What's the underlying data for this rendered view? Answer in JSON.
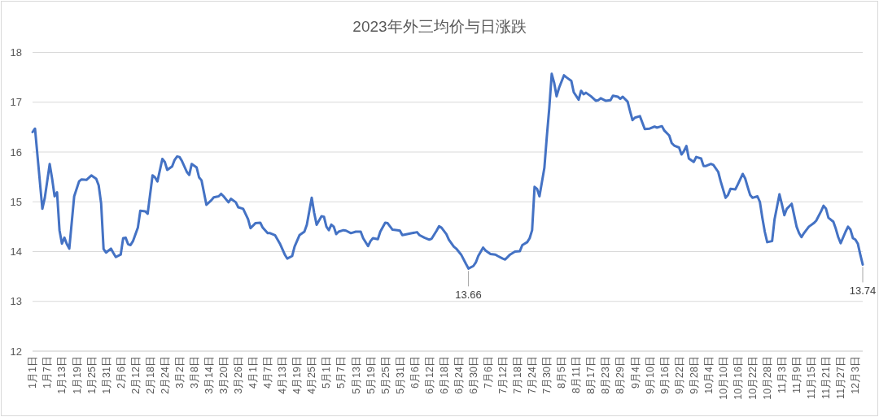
{
  "chart_data": {
    "type": "line",
    "title": "2023年外三均价与日涨跌",
    "x": [
      "--01-01",
      "--01-02",
      "--01-05",
      "--01-06",
      "--01-08",
      "--01-09",
      "--01-10",
      "--01-11",
      "--01-12",
      "--01-13",
      "--01-14",
      "--01-15",
      "--01-16",
      "--01-18",
      "--01-20",
      "--01-21",
      "--01-23",
      "--01-25",
      "--01-27",
      "--01-28",
      "--01-29",
      "--01-30",
      "--01-31",
      "--02-02",
      "--02-03",
      "--02-04",
      "--02-06",
      "--02-07",
      "--02-08",
      "--02-09",
      "--02-10",
      "--02-11",
      "--02-13",
      "--02-14",
      "--02-16",
      "--02-17",
      "--02-19",
      "--02-20",
      "--02-21",
      "--02-23",
      "--02-24",
      "--02-25",
      "--02-27",
      "--02-28",
      "--03-01",
      "--03-02",
      "--03-03",
      "--03-05",
      "--03-06",
      "--03-07",
      "--03-09",
      "--03-10",
      "--03-11",
      "--03-13",
      "--03-15",
      "--03-16",
      "--03-18",
      "--03-19",
      "--03-20",
      "--03-22",
      "--03-23",
      "--03-25",
      "--03-26",
      "--03-28",
      "--03-30",
      "--03-31",
      "--04-02",
      "--04-04",
      "--04-05",
      "--04-07",
      "--04-08",
      "--04-10",
      "--04-12",
      "--04-14",
      "--04-15",
      "--04-17",
      "--04-18",
      "--04-20",
      "--04-22",
      "--04-23",
      "--04-25",
      "--04-26",
      "--04-27",
      "--04-29",
      "--04-30",
      "--05-01",
      "--05-02",
      "--05-03",
      "--05-04",
      "--05-05",
      "--05-06",
      "--05-08",
      "--05-09",
      "--05-11",
      "--05-13",
      "--05-15",
      "--05-16",
      "--05-18",
      "--05-19",
      "--05-20",
      "--05-22",
      "--05-23",
      "--05-25",
      "--05-26",
      "--05-28",
      "--05-30",
      "--05-31",
      "--06-01",
      "--06-03",
      "--06-05",
      "--06-07",
      "--06-08",
      "--06-10",
      "--06-12",
      "--06-13",
      "--06-15",
      "--06-16",
      "--06-17",
      "--06-19",
      "--06-20",
      "--06-22",
      "--06-23",
      "--06-25",
      "--06-27",
      "--06-28",
      "--06-30",
      "--07-01",
      "--07-02",
      "--07-04",
      "--07-05",
      "--07-07",
      "--07-09",
      "--07-10",
      "--07-12",
      "--07-13",
      "--07-15",
      "--07-17",
      "--07-19",
      "--07-20",
      "--07-22",
      "--07-23",
      "--07-24",
      "--07-25",
      "--07-26",
      "--07-27",
      "--07-29",
      "--07-30",
      "--07-31",
      "--08-01",
      "--08-02",
      "--08-03",
      "--08-04",
      "--08-06",
      "--08-07",
      "--08-09",
      "--08-10",
      "--08-12",
      "--08-13",
      "--08-14",
      "--08-15",
      "--08-17",
      "--08-19",
      "--08-20",
      "--08-21",
      "--08-23",
      "--08-25",
      "--08-26",
      "--08-28",
      "--08-29",
      "--08-30",
      "--09-01",
      "--09-02",
      "--09-03",
      "--09-04",
      "--09-06",
      "--09-08",
      "--09-10",
      "--09-12",
      "--09-13",
      "--09-15",
      "--09-16",
      "--09-18",
      "--09-19",
      "--09-20",
      "--09-22",
      "--09-23",
      "--09-24",
      "--09-25",
      "--09-26",
      "--09-28",
      "--09-29",
      "--10-01",
      "--10-02",
      "--10-03",
      "--10-05",
      "--10-06",
      "--10-08",
      "--10-09",
      "--10-11",
      "--10-12",
      "--10-13",
      "--10-15",
      "--10-16",
      "--10-18",
      "--10-19",
      "--10-20",
      "--10-21",
      "--10-22",
      "--10-24",
      "--10-25",
      "--10-26",
      "--10-27",
      "--10-28",
      "--10-30",
      "--10-31",
      "--11-02",
      "--11-03",
      "--11-04",
      "--11-05",
      "--11-07",
      "--11-09",
      "--11-10",
      "--11-11",
      "--11-12",
      "--11-14",
      "--11-16",
      "--11-17",
      "--11-19",
      "--11-20",
      "--11-21",
      "--11-22",
      "--11-24",
      "--11-25",
      "--11-26",
      "--11-27",
      "--11-29",
      "--11-30",
      "--12-01",
      "--12-02",
      "--12-03",
      "--12-04",
      "--12-05",
      "--12-06"
    ],
    "values": [
      16.4,
      16.47,
      14.86,
      15.08,
      15.76,
      15.46,
      15.11,
      15.19,
      14.43,
      14.16,
      14.28,
      14.15,
      14.06,
      15.11,
      15.41,
      15.45,
      15.44,
      15.53,
      15.46,
      15.33,
      14.97,
      14.05,
      13.98,
      14.06,
      13.97,
      13.89,
      13.94,
      14.27,
      14.28,
      14.15,
      14.13,
      14.21,
      14.48,
      14.82,
      14.81,
      14.76,
      15.53,
      15.49,
      15.41,
      15.86,
      15.8,
      15.64,
      15.71,
      15.84,
      15.91,
      15.9,
      15.82,
      15.6,
      15.54,
      15.76,
      15.69,
      15.49,
      15.43,
      14.94,
      15.03,
      15.09,
      15.11,
      15.16,
      15.11,
      14.99,
      15.06,
      14.99,
      14.89,
      14.86,
      14.65,
      14.47,
      14.57,
      14.58,
      14.48,
      14.37,
      14.37,
      14.33,
      14.16,
      13.94,
      13.86,
      13.91,
      14.1,
      14.33,
      14.4,
      14.54,
      15.08,
      14.78,
      14.54,
      14.71,
      14.7,
      14.5,
      14.43,
      14.54,
      14.5,
      14.35,
      14.4,
      14.43,
      14.42,
      14.37,
      14.4,
      14.4,
      14.27,
      14.11,
      14.21,
      14.27,
      14.25,
      14.4,
      14.58,
      14.57,
      14.44,
      14.43,
      14.42,
      14.33,
      14.35,
      14.37,
      14.39,
      14.33,
      14.28,
      14.24,
      14.26,
      14.42,
      14.51,
      14.48,
      14.35,
      14.24,
      14.1,
      14.06,
      13.94,
      13.75,
      13.66,
      13.71,
      13.78,
      13.91,
      14.08,
      14.02,
      13.95,
      13.94,
      13.91,
      13.86,
      13.84,
      13.94,
      14.0,
      14.01,
      14.13,
      14.19,
      14.27,
      14.43,
      15.3,
      15.26,
      15.11,
      15.68,
      16.31,
      16.88,
      17.57,
      17.39,
      17.12,
      17.29,
      17.54,
      17.5,
      17.43,
      17.2,
      17.05,
      17.23,
      17.16,
      17.19,
      17.12,
      17.03,
      17.04,
      17.08,
      17.03,
      17.04,
      17.13,
      17.11,
      17.07,
      17.11,
      17.01,
      16.82,
      16.64,
      16.69,
      16.72,
      16.46,
      16.47,
      16.51,
      16.49,
      16.52,
      16.43,
      16.33,
      16.18,
      16.13,
      16.09,
      15.95,
      16.02,
      16.12,
      15.87,
      15.8,
      15.9,
      15.87,
      15.72,
      15.72,
      15.76,
      15.74,
      15.6,
      15.41,
      15.08,
      15.14,
      15.26,
      15.25,
      15.35,
      15.56,
      15.47,
      15.3,
      15.14,
      15.08,
      15.11,
      15.0,
      14.68,
      14.4,
      14.19,
      14.21,
      14.65,
      15.15,
      14.95,
      14.73,
      14.86,
      14.96,
      14.5,
      14.37,
      14.29,
      14.37,
      14.5,
      14.57,
      14.62,
      14.81,
      14.92,
      14.86,
      14.68,
      14.6,
      14.46,
      14.29,
      14.17,
      14.4,
      14.5,
      14.44,
      14.27,
      14.24,
      14.16,
      13.94,
      13.74
    ],
    "color": "#4472c4",
    "xlim": [
      "--01-01",
      "--12-06"
    ],
    "xticks": [
      {
        "value": "--01-01",
        "label": "1月1日"
      },
      {
        "value": "--01-07",
        "label": "1月7日"
      },
      {
        "value": "--01-13",
        "label": "1月13日"
      },
      {
        "value": "--01-19",
        "label": "1月19日"
      },
      {
        "value": "--01-25",
        "label": "1月25日"
      },
      {
        "value": "--01-31",
        "label": "1月31日"
      },
      {
        "value": "--02-06",
        "label": "2月6日"
      },
      {
        "value": "--02-12",
        "label": "2月12日"
      },
      {
        "value": "--02-18",
        "label": "2月18日"
      },
      {
        "value": "--02-24",
        "label": "2月24日"
      },
      {
        "value": "--03-02",
        "label": "3月2日"
      },
      {
        "value": "--03-08",
        "label": "3月8日"
      },
      {
        "value": "--03-14",
        "label": "3月14日"
      },
      {
        "value": "--03-20",
        "label": "3月20日"
      },
      {
        "value": "--03-26",
        "label": "3月26日"
      },
      {
        "value": "--04-01",
        "label": "4月1日"
      },
      {
        "value": "--04-07",
        "label": "4月7日"
      },
      {
        "value": "--04-13",
        "label": "4月13日"
      },
      {
        "value": "--04-19",
        "label": "4月19日"
      },
      {
        "value": "--04-25",
        "label": "4月25日"
      },
      {
        "value": "--05-01",
        "label": "5月1日"
      },
      {
        "value": "--05-07",
        "label": "5月7日"
      },
      {
        "value": "--05-13",
        "label": "5月13日"
      },
      {
        "value": "--05-19",
        "label": "5月19日"
      },
      {
        "value": "--05-25",
        "label": "5月25日"
      },
      {
        "value": "--05-31",
        "label": "5月31日"
      },
      {
        "value": "--06-06",
        "label": "6月6日"
      },
      {
        "value": "--06-12",
        "label": "6月12日"
      },
      {
        "value": "--06-18",
        "label": "6月18日"
      },
      {
        "value": "--06-24",
        "label": "6月24日"
      },
      {
        "value": "--06-30",
        "label": "6月30日"
      },
      {
        "value": "--07-06",
        "label": "7月6日"
      },
      {
        "value": "--07-12",
        "label": "7月12日"
      },
      {
        "value": "--07-18",
        "label": "7月18日"
      },
      {
        "value": "--07-24",
        "label": "7月24日"
      },
      {
        "value": "--07-30",
        "label": "7月30日"
      },
      {
        "value": "--08-05",
        "label": "8月5日"
      },
      {
        "value": "--08-11",
        "label": "8月11日"
      },
      {
        "value": "--08-17",
        "label": "8月17日"
      },
      {
        "value": "--08-23",
        "label": "8月23日"
      },
      {
        "value": "--08-29",
        "label": "8月29日"
      },
      {
        "value": "--09-04",
        "label": "9月4日"
      },
      {
        "value": "--09-10",
        "label": "9月10日"
      },
      {
        "value": "--09-16",
        "label": "9月16日"
      },
      {
        "value": "--09-22",
        "label": "9月22日"
      },
      {
        "value": "--09-28",
        "label": "9月28日"
      },
      {
        "value": "--10-04",
        "label": "10月4日"
      },
      {
        "value": "--10-10",
        "label": "10月10日"
      },
      {
        "value": "--10-16",
        "label": "10月16日"
      },
      {
        "value": "--10-22",
        "label": "10月22日"
      },
      {
        "value": "--10-28",
        "label": "10月28日"
      },
      {
        "value": "--11-03",
        "label": "11月3日"
      },
      {
        "value": "--11-09",
        "label": "11月9日"
      },
      {
        "value": "--11-15",
        "label": "11月15日"
      },
      {
        "value": "--11-21",
        "label": "11月21日"
      },
      {
        "value": "--11-27",
        "label": "11月27日"
      },
      {
        "value": "--12-03",
        "label": "12月3日"
      }
    ],
    "ylim": [
      12,
      18
    ],
    "yticks": [
      12,
      13,
      14,
      15,
      16,
      17,
      18
    ],
    "grid": "y",
    "annotations": [
      {
        "text": "13.66",
        "x": "--06-28",
        "y": 13.66
      },
      {
        "text": "13.74",
        "x": "--12-06",
        "y": 13.74
      }
    ]
  }
}
